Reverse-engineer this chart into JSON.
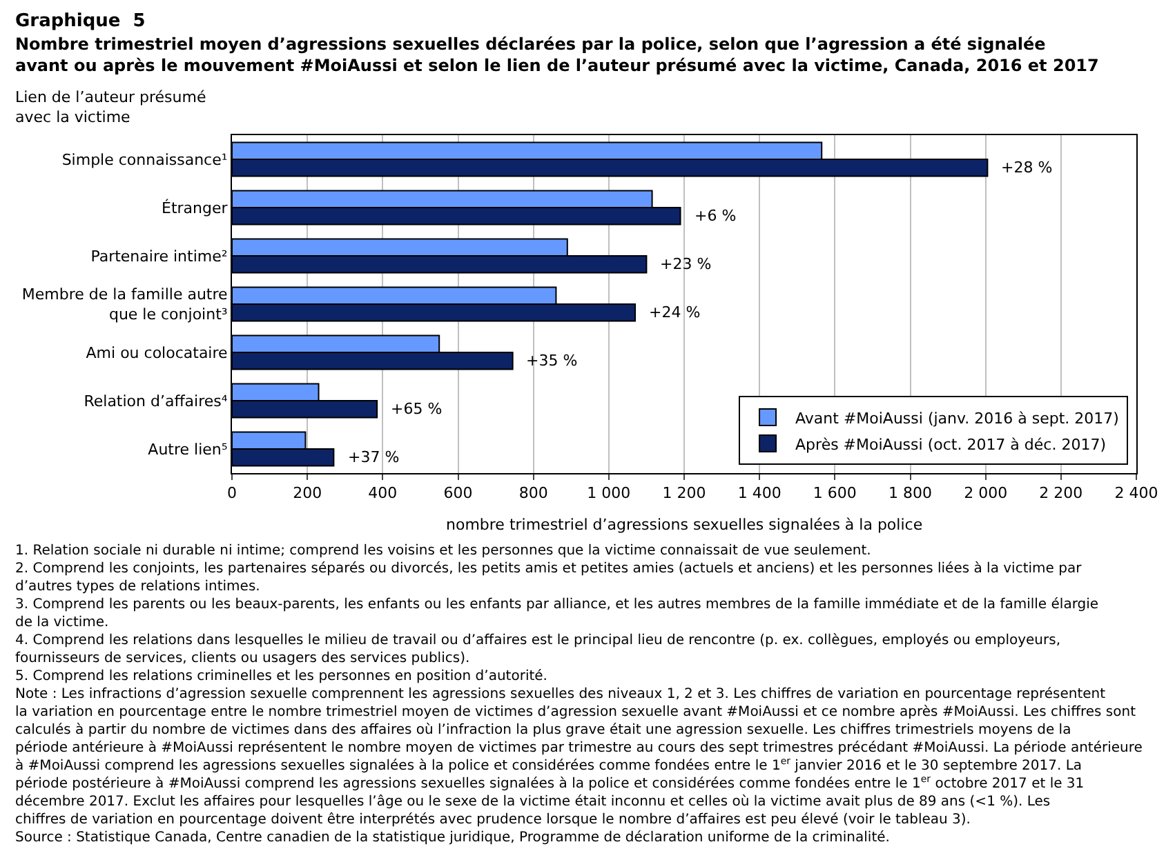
{
  "chart_data": {
    "type": "bar",
    "orientation": "horizontal",
    "title": "Graphique  5",
    "subtitle": "Nombre trimestriel moyen d’agressions sexuelles déclarées par la police, selon que l’agression a été signalée avant ou après le mouvement #MoiAussi et selon le lien de l’auteur présumé avec la victime, Canada, 2016 et 2017",
    "ylabel": "Lien de l’auteur présumé avec la victime",
    "xlabel": "nombre trimestriel d’agressions sexuelles signalées à la police",
    "categories": [
      "Simple connaissance¹",
      "Étranger",
      "Partenaire intime²",
      "Membre de la famille autre\nque le conjoint³",
      "Ami ou colocataire",
      "Relation d’affaires⁴",
      "Autre lien⁵"
    ],
    "series": [
      {
        "name": "Avant #MoiAussi (janv. 2016 à sept. 2017)",
        "color": "#6699ff",
        "values": [
          1565,
          1115,
          890,
          860,
          550,
          230,
          195
        ]
      },
      {
        "name": "Après #MoiAussi (oct. 2017 à déc. 2017)",
        "color": "#0c2366",
        "values": [
          2005,
          1190,
          1100,
          1070,
          745,
          385,
          270
        ]
      }
    ],
    "xlim": [
      0,
      2400
    ],
    "xticks": [
      0,
      {
        "value": 200,
        "label": "200"
      },
      {
        "value": 400,
        "label": "400"
      },
      {
        "value": 600,
        "label": "600"
      },
      {
        "value": 800,
        "label": "800"
      },
      {
        "value": 1000,
        "label": "1 000"
      },
      {
        "value": 1200,
        "label": "1 200"
      },
      {
        "value": 1400,
        "label": "1 400"
      },
      {
        "value": 1600,
        "label": "1 600"
      },
      {
        "value": 1800,
        "label": "1 800"
      },
      {
        "value": 2000,
        "label": "2 000"
      },
      {
        "value": 2200,
        "label": "2 200"
      },
      {
        "value": 2400,
        "label": "2 400"
      }
    ],
    "grid": "x",
    "legend": "bottom right",
    "annotations": [
      {
        "text": "+28 %",
        "x": 2005,
        "y": "Simple connaissance¹"
      },
      {
        "text": "+6 %",
        "x": 1190,
        "y": "Étranger"
      },
      {
        "text": "+23 %",
        "x": 1100,
        "y": "Partenaire intime²"
      },
      {
        "text": "+24 %",
        "x": 1070,
        "y": "Membre de la famille autre\nque le conjoint³"
      },
      {
        "text": "+35 %",
        "x": 745,
        "y": "Ami ou colocataire"
      },
      {
        "text": "+65 %",
        "x": 385,
        "y": "Relation d’affaires⁴"
      },
      {
        "text": "+37 %",
        "x": 270,
        "y": "Autre lien⁵"
      },
      "1. Relation sociale ni durable ni intime; comprend les voisins et les personnes que la victime connaissait de vue seulement.",
      "2. Comprend les conjoints, les partenaires séparés ou divorcés, les petits amis et petites amies (actuels et anciens) et les personnes liées à la victime par d’autres types de relations intimes.",
      "3. Comprend les parents ou les beaux-parents, les enfants ou les enfants par alliance, et les autres membres de la famille immédiate et de la famille élargie de la victime.",
      "4. Comprend les relations dans lesquelles le milieu de travail ou d’affaires est le principal lieu de rencontre (p. ex. collègues, employés ou employeurs, fournisseurs de services, clients ou usagers des services publics).",
      "5. Comprend les relations criminelles et les personnes en position d’autorité.",
      "Note : Les infractions d’agression sexuelle comprennent les agressions sexuelles des niveaux 1, 2 et 3. Les chiffres de variation en pourcentage représentent la variation en pourcentage entre le nombre trimestriel moyen de victimes d’agression sexuelle avant #MoiAussi et ce nombre après #MoiAussi. Les chiffres sont calculés à partir du nombre de victimes dans des affaires où l’infraction la plus grave était une agression sexuelle. Les chiffres trimestriels moyens de la période antérieure à #MoiAussi représentent le nombre moyen de victimes par trimestre au cours des sept trimestres précédant #MoiAussi. La période antérieure à #MoiAussi comprend les agressions sexuelles signalées à la police et considérées comme fondées entre le 1$^{er}$ janvier 2016 et le 30 septembre 2017. La période postérieure à #MoiAussi comprend les agressions sexuelles signalées à la police et considérées comme fondées entre le 1$^{er}$ octobre 2017 et le 31 décembre 2017. Exclut les affaires pour lesquelles l’âge ou le sexe de la victime était inconnu et celles où la victime avait plus de 89 ans (<1 %). Les chiffres de variation en pourcentage doivent être interprétés avec prudence lorsque le nombre d’affaires est peu élevé (voir le tableau 3).",
      "Source : Statistique Canada, Centre canadien de la statistique juridique, Programme de déclaration uniforme de la criminalité."
    ]
  }
}
